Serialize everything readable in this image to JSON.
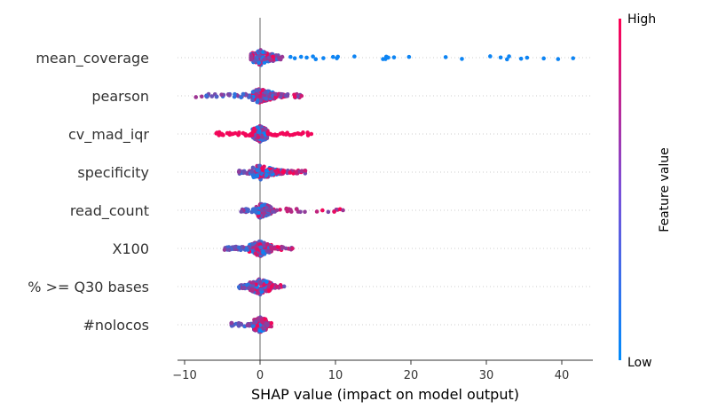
{
  "chart_data": {
    "type": "scatter",
    "title": "",
    "xlabel": "SHAP value (impact on model output)",
    "xlim": [
      -11,
      44
    ],
    "xticks": [
      -10,
      0,
      10,
      20,
      30,
      40
    ],
    "xtick_labels": [
      "−10",
      "0",
      "10",
      "20",
      "30",
      "40"
    ],
    "colorbar": {
      "label": "Feature value",
      "high": "High",
      "low": "Low"
    },
    "colors": {
      "low": "#008bfb",
      "high": "#ff0052",
      "zero_line": "#999999",
      "row_guide": "#cccccc"
    },
    "features": [
      {
        "name": "mean_coverage",
        "min": -1.2,
        "max": 41.5,
        "bulk": [
          -1.2,
          2.5
        ]
      },
      {
        "name": "pearson",
        "min": -8.5,
        "max": 5.5,
        "bulk": [
          -1.0,
          2.0
        ]
      },
      {
        "name": "cv_mad_iqr",
        "min": -5.8,
        "max": 6.8,
        "bulk": [
          -1.0,
          1.0
        ]
      },
      {
        "name": "specificity",
        "min": -2.8,
        "max": 6.0,
        "bulk": [
          -1.0,
          3.0
        ]
      },
      {
        "name": "read_count",
        "min": -2.5,
        "max": 11.0,
        "bulk": [
          -0.5,
          1.5
        ]
      },
      {
        "name": "X100",
        "min": -4.7,
        "max": 4.3,
        "bulk": [
          -1.5,
          1.5
        ]
      },
      {
        "name": "% >= Q30 bases",
        "min": -2.8,
        "max": 3.2,
        "bulk": [
          -1.5,
          1.5
        ]
      },
      {
        "name": "#nolocos",
        "min": -3.8,
        "max": 1.5,
        "bulk": [
          -0.8,
          0.8
        ]
      }
    ]
  }
}
